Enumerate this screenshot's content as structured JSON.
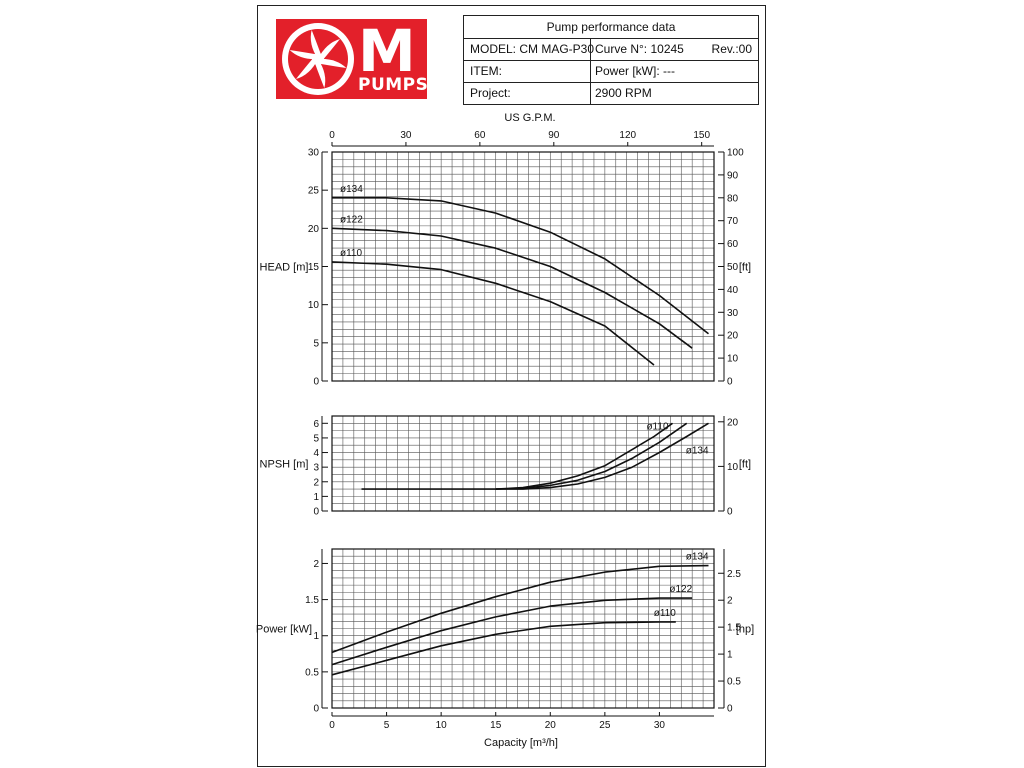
{
  "header": {
    "title": "Pump performance data",
    "model": "MODEL: CM MAG-P30",
    "curve": "Curve N°: 10245",
    "rev": "Rev.:00",
    "item": "ITEM:",
    "power": "Power [kW]: ---",
    "project": "Project:",
    "rpm": "2900 RPM"
  },
  "logo": {
    "letter": "M",
    "word": "PUMPS",
    "color": "#e3202a"
  },
  "top_axis": {
    "label": "US G.P.M.",
    "ticks": [
      "0",
      "30",
      "60",
      "90",
      "120",
      "150"
    ],
    "range": [
      0,
      155
    ]
  },
  "chart_data": [
    {
      "type": "line",
      "ylabel": "HEAD [m]",
      "y2label": "[ft]",
      "xlim": [
        0,
        35
      ],
      "ylim": [
        0,
        30
      ],
      "y_ticks": [
        "0",
        "5",
        "10",
        "15",
        "20",
        "25",
        "30"
      ],
      "y2lim": [
        0,
        100
      ],
      "y2_ticks": [
        "0",
        "10",
        "20",
        "30",
        "40",
        "50",
        "60",
        "70",
        "80",
        "90",
        "100"
      ],
      "grid": true,
      "series": [
        {
          "name": "ø134",
          "x": [
            0,
            5,
            10,
            15,
            20,
            25,
            30,
            34.5
          ],
          "y": [
            24,
            24,
            23.6,
            22,
            19.5,
            16,
            11.2,
            6.2
          ]
        },
        {
          "name": "ø122",
          "x": [
            0,
            5,
            10,
            15,
            20,
            25,
            30,
            33
          ],
          "y": [
            20,
            19.7,
            19,
            17.4,
            15,
            11.6,
            7.5,
            4.3
          ]
        },
        {
          "name": "ø110",
          "x": [
            0,
            5,
            10,
            15,
            20,
            25,
            29.5
          ],
          "y": [
            15.6,
            15.3,
            14.6,
            12.8,
            10.4,
            7.2,
            2.1
          ]
        }
      ]
    },
    {
      "type": "line",
      "ylabel": "NPSH [m]",
      "y2label": "[ft]",
      "xlim": [
        0,
        35
      ],
      "ylim": [
        0,
        6.5
      ],
      "y_ticks": [
        "0",
        "1",
        "2",
        "3",
        "4",
        "5",
        "6"
      ],
      "y2lim": [
        0,
        21.3
      ],
      "y2_ticks": [
        "0",
        "10",
        "20"
      ],
      "grid": true,
      "series": [
        {
          "name": "ø110",
          "x": [
            2.7,
            10,
            15,
            17.5,
            20,
            22.5,
            25,
            27.5,
            29.5,
            31.2
          ],
          "y": [
            1.5,
            1.5,
            1.5,
            1.6,
            1.9,
            2.4,
            3.1,
            4.2,
            5.1,
            6.0
          ]
        },
        {
          "name": "",
          "x": [
            15,
            17.5,
            20,
            22.5,
            25,
            27.5,
            30,
            32.5
          ],
          "y": [
            1.5,
            1.55,
            1.75,
            2.1,
            2.7,
            3.6,
            4.7,
            6.0
          ]
        },
        {
          "name": "ø134",
          "x": [
            15,
            17.5,
            20,
            22.5,
            25,
            27.5,
            30,
            32.5,
            34.5
          ],
          "y": [
            1.5,
            1.5,
            1.6,
            1.85,
            2.3,
            3.0,
            4.0,
            5.1,
            6.0
          ]
        }
      ]
    },
    {
      "type": "line",
      "ylabel": "Power [kW]",
      "y2label": "[hp]",
      "xlabel": "Capacity [m³/h]",
      "xlim": [
        0,
        35
      ],
      "x_ticks": [
        "0",
        "5",
        "10",
        "15",
        "20",
        "25",
        "30"
      ],
      "ylim": [
        0,
        2.2
      ],
      "y_ticks": [
        "0",
        "0.5",
        "1",
        "1.5",
        "2"
      ],
      "y2lim": [
        0,
        2.95
      ],
      "y2_ticks": [
        "0",
        "0.5",
        "1",
        "1.5",
        "2",
        "2.5"
      ],
      "grid": true,
      "series": [
        {
          "name": "ø134",
          "x": [
            0,
            5,
            10,
            15,
            20,
            25,
            30,
            34.5
          ],
          "y": [
            0.77,
            1.05,
            1.31,
            1.54,
            1.74,
            1.88,
            1.96,
            1.97
          ]
        },
        {
          "name": "ø122",
          "x": [
            0,
            5,
            10,
            15,
            20,
            25,
            30,
            33
          ],
          "y": [
            0.6,
            0.84,
            1.07,
            1.26,
            1.41,
            1.49,
            1.52,
            1.52
          ]
        },
        {
          "name": "ø110",
          "x": [
            0,
            5,
            10,
            15,
            20,
            25,
            30,
            31.5
          ],
          "y": [
            0.46,
            0.66,
            0.86,
            1.02,
            1.13,
            1.18,
            1.19,
            1.19
          ]
        }
      ]
    }
  ]
}
